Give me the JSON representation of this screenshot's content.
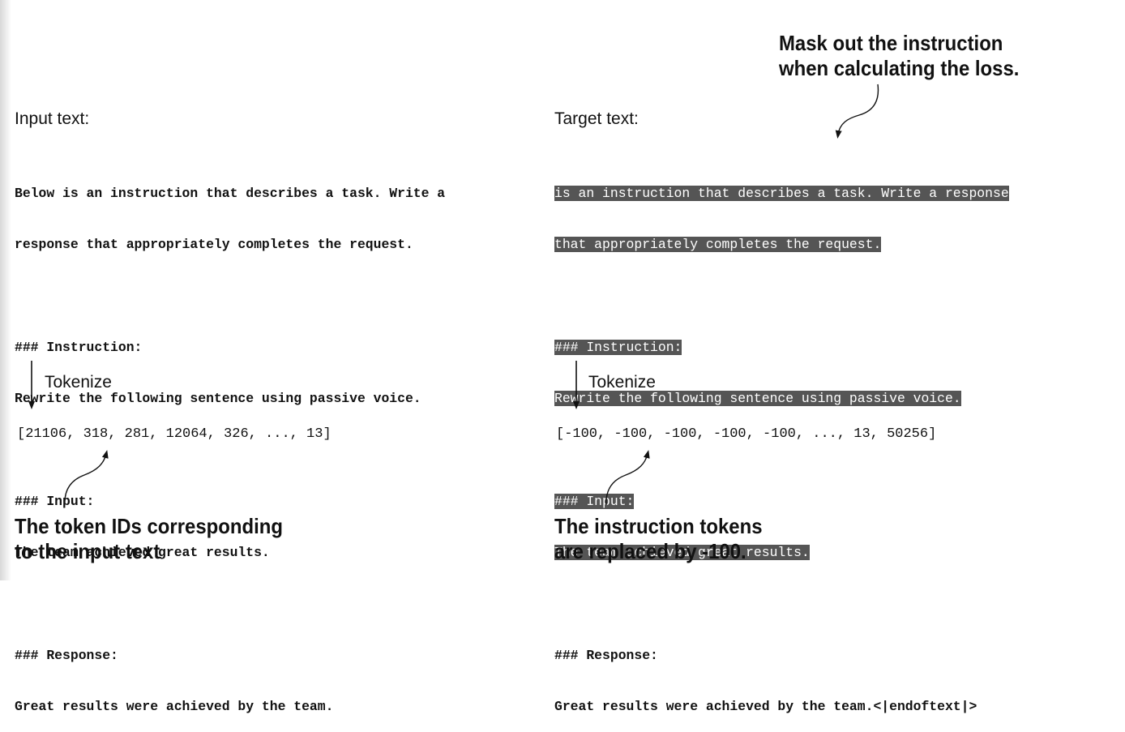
{
  "top_callout": {
    "lines": [
      "Mask out the instruction",
      "when calculating the loss."
    ]
  },
  "left": {
    "heading": "Input text:",
    "lines": [
      "Below is an instruction that describes a task. Write a",
      "response that appropriately completes the request.",
      "### Instruction:",
      "Rewrite the following sentence using passive voice.",
      "### Input:",
      "The team achieved great results.",
      "### Response:",
      "Great results were achieved by the team."
    ],
    "tokenize_label": "Tokenize",
    "token_ids": "[21106, 318, 281, 12064, 326, ..., 13]",
    "callout": [
      "The token IDs corresponding",
      "to the input text"
    ]
  },
  "right": {
    "heading": "Target text:",
    "lines": [
      "is an instruction that describes a task. Write a response",
      "that appropriately completes the request.",
      "### Instruction:",
      "Rewrite the following sentence using passive voice.",
      "### Input:",
      "The team achieved great results.",
      "### Response:",
      "Great results were achieved by the team.<|endoftext|>"
    ],
    "tokenize_label": "Tokenize",
    "token_ids": "[-100, -100, -100, -100, -100, ..., 13, 50256]",
    "callout": [
      "The instruction tokens",
      "are replaced by -100."
    ]
  },
  "colors": {
    "mask_background": "#555555",
    "mask_text": "#ffffff",
    "text": "#111111"
  }
}
